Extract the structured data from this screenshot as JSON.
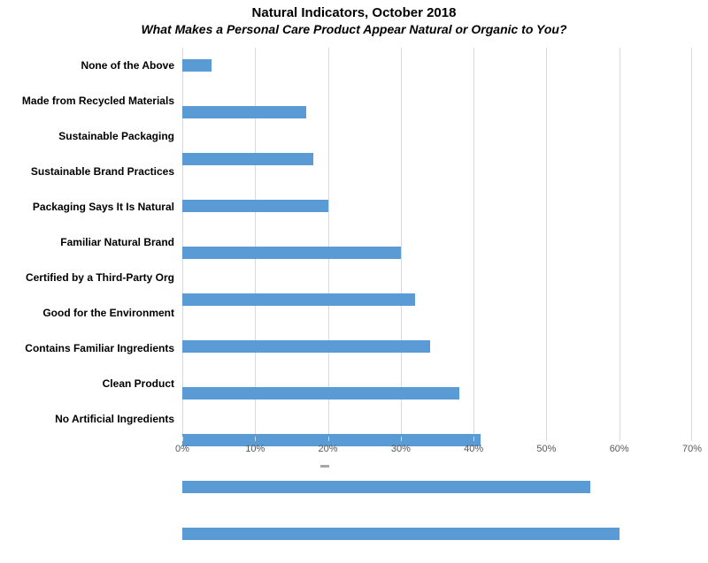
{
  "header": {
    "title": "Natural Indicators, October 2018",
    "subtitle": "What Makes a Personal Care Product Appear Natural or Organic to You?"
  },
  "chart_data": {
    "type": "bar",
    "orientation": "horizontal",
    "title": "Natural Indicators, October 2018",
    "subtitle": "What Makes a Personal Care Product Appear Natural or Organic to You?",
    "categories": [
      "None of the Above",
      "Made from Recycled Materials",
      "Sustainable Packaging",
      "Sustainable Brand Practices",
      "Packaging Says It Is Natural",
      "Familiar Natural Brand",
      "Certified by a Third-Party Org",
      "Good for the Environment",
      "Contains Familiar Ingredients",
      "Clean Product",
      "No Artificial Ingredients"
    ],
    "values": [
      4,
      17,
      18,
      20,
      30,
      32,
      34,
      38,
      41,
      56,
      60
    ],
    "value_unit": "%",
    "xlabel": "",
    "ylabel": "",
    "xlim": [
      0,
      70
    ],
    "x_tick_labels": [
      "0%",
      "10%",
      "20%",
      "30%",
      "40%",
      "50%",
      "60%",
      "70%"
    ],
    "grid": true,
    "legend_position": "none",
    "colors": {
      "bar": "#5b9bd5",
      "gridline": "#d9d9d9",
      "tick_label": "#595959",
      "category_label": "#000000",
      "title": "#000000"
    }
  }
}
